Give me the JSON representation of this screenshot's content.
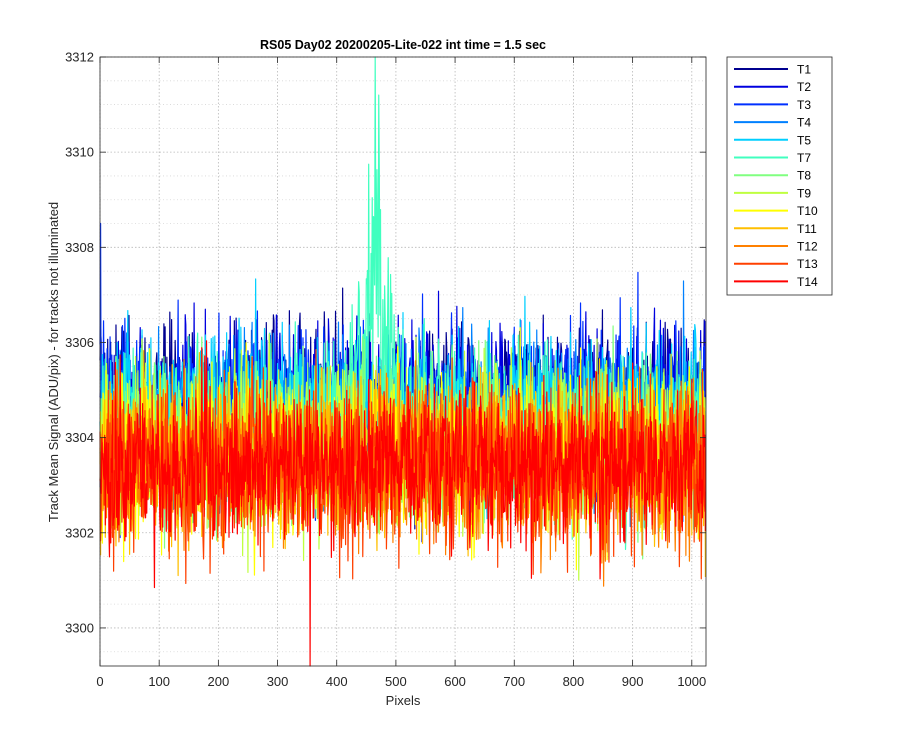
{
  "chart_data": {
    "type": "line",
    "title": "RS05 Day02 20200205-Lite-022 int time = 1.5 sec",
    "xlabel": "Pixels",
    "ylabel": "Track Mean Signal (ADU/pix) - for tracks not illuminated",
    "xlim": [
      0,
      1024
    ],
    "ylim": [
      3299.2,
      3312
    ],
    "x_ticks": [
      0,
      100,
      200,
      300,
      400,
      500,
      600,
      700,
      800,
      900,
      1000
    ],
    "x_tick_labels": [
      "0",
      "100",
      "200",
      "300",
      "400",
      "500",
      "600",
      "700",
      "800",
      "900",
      "1000"
    ],
    "y_ticks": [
      3300,
      3302,
      3304,
      3306,
      3308,
      3310,
      3312
    ],
    "y_tick_labels": [
      "3300",
      "3302",
      "3304",
      "3306",
      "3308",
      "3310",
      "3312"
    ],
    "y_minor_step": 0.5,
    "grid": "major and minor, dotted",
    "legend_position": "outside top-right",
    "x_sampling": "every pixel from 0 to 1023, summarized here as approximate mean and spread per series",
    "series": [
      {
        "name": "T1",
        "color": "#00008f",
        "mean": 3304.7,
        "spread": 0.85
      },
      {
        "name": "T2",
        "color": "#0000df",
        "mean": 3304.6,
        "spread": 0.85
      },
      {
        "name": "T3",
        "color": "#0030ff",
        "mean": 3304.5,
        "spread": 0.85
      },
      {
        "name": "T4",
        "color": "#0080ff",
        "mean": 3304.4,
        "spread": 0.85
      },
      {
        "name": "T5",
        "color": "#00cfff",
        "mean": 3304.4,
        "spread": 0.85
      },
      {
        "name": "T7",
        "color": "#40ffbf",
        "mean": 3304.1,
        "spread": 0.85,
        "peak": {
          "x": 465,
          "y": 3312
        }
      },
      {
        "name": "T8",
        "color": "#80ff80",
        "mean": 3303.9,
        "spread": 0.85
      },
      {
        "name": "T9",
        "color": "#bfff40",
        "mean": 3303.8,
        "spread": 0.85
      },
      {
        "name": "T10",
        "color": "#ffff00",
        "mean": 3303.6,
        "spread": 0.85
      },
      {
        "name": "T11",
        "color": "#ffbf00",
        "mean": 3303.6,
        "spread": 0.85
      },
      {
        "name": "T12",
        "color": "#ff8000",
        "mean": 3303.4,
        "spread": 0.85
      },
      {
        "name": "T13",
        "color": "#ff4000",
        "mean": 3303.4,
        "spread": 0.85
      },
      {
        "name": "T14",
        "color": "#ff0000",
        "mean": 3303.4,
        "spread": 0.8,
        "dip": {
          "x": 355,
          "y": 3299.2
        }
      }
    ]
  }
}
